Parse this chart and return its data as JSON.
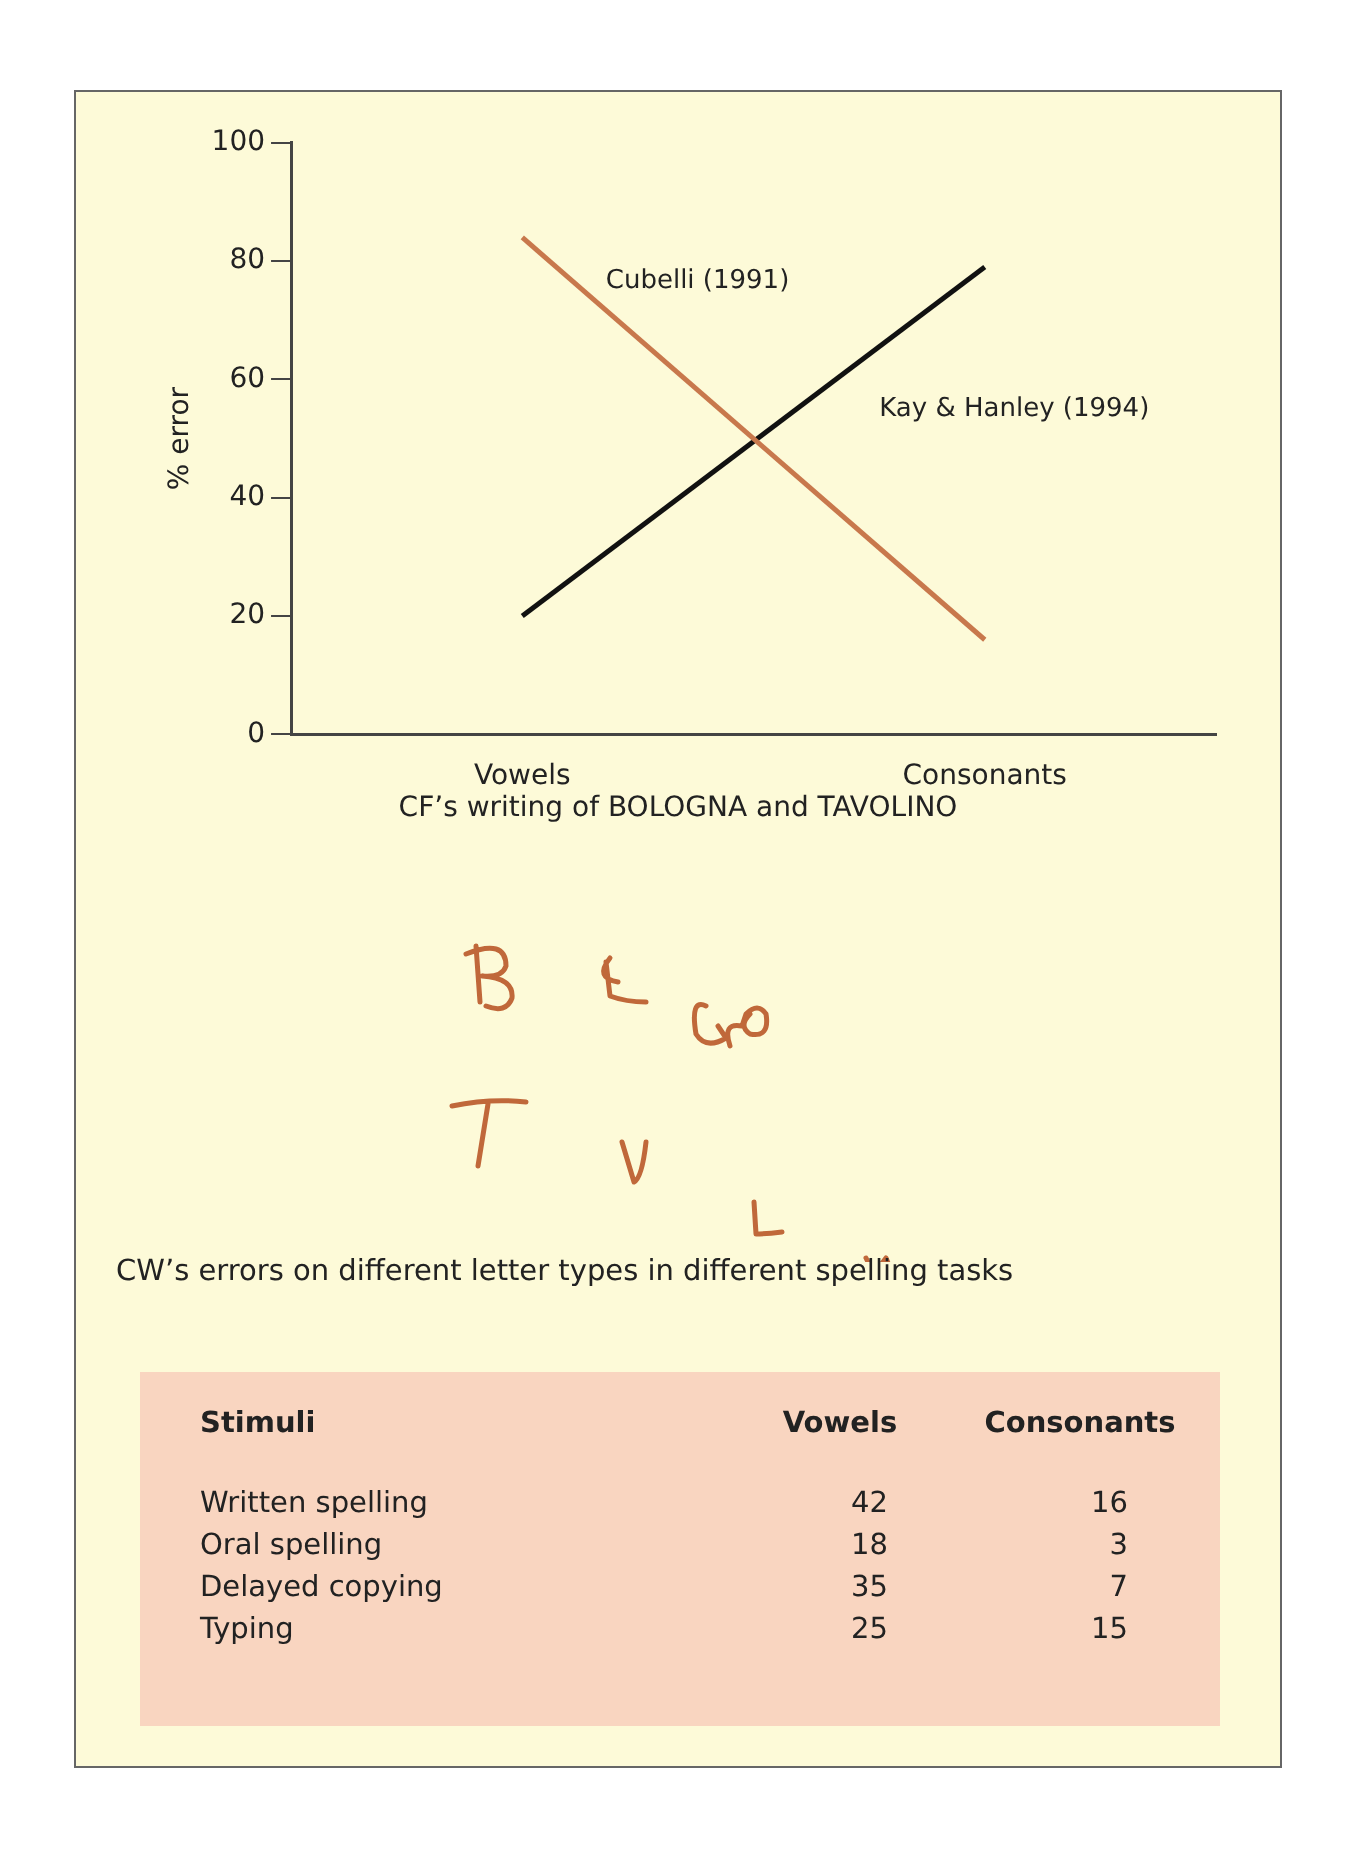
{
  "chart_data": [
    {
      "type": "line",
      "categories": [
        "Vowels",
        "Consonants"
      ],
      "ylabel": "% error",
      "ylim": [
        0,
        100
      ],
      "yticks": [
        0,
        20,
        40,
        60,
        80,
        100
      ],
      "grid": false,
      "legend": false,
      "marker": "none",
      "line_style": "solid",
      "series": [
        {
          "name": "Cubelli (1991)",
          "color": "#c8784c",
          "values": [
            84,
            16
          ]
        },
        {
          "name": "Kay & Hanley (1994)",
          "color": "#111111",
          "values": [
            20,
            79
          ]
        }
      ],
      "annotations": [
        "CF’s writing of BOLOGNA and TAVOLINO"
      ]
    },
    {
      "type": "other",
      "title": "CW’s errors on different letter types in different spelling tasks",
      "xlabel": "Stimuli",
      "categories": [
        "Written spelling",
        "Oral spelling",
        "Delayed copying",
        "Typing"
      ],
      "data_labels": true,
      "series": [
        {
          "name": "Vowels",
          "values": [
            42,
            18,
            35,
            25
          ]
        },
        {
          "name": "Consonants",
          "values": [
            16,
            3,
            7,
            15
          ]
        }
      ]
    }
  ]
}
